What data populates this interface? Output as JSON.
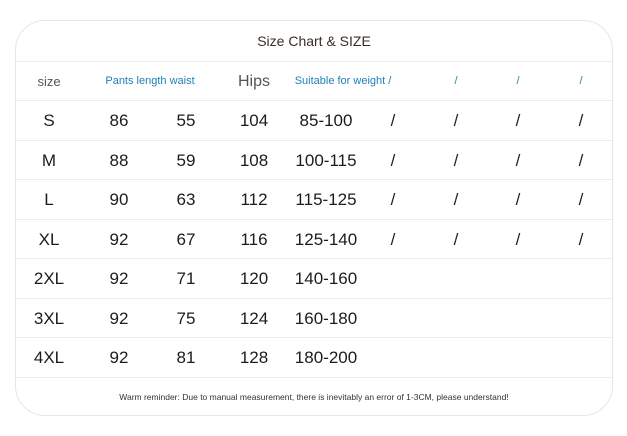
{
  "title": "Size Chart & SIZE",
  "header": {
    "size": "size",
    "pants_waist": "Pants length waist",
    "hips": "Hips",
    "weight": "Suitable for weight /",
    "extra": [
      "/",
      "/",
      "/"
    ]
  },
  "rows": [
    {
      "size": "S",
      "pants": "86",
      "waist": "55",
      "hips": "104",
      "weight": "85-100",
      "extra": [
        "/",
        "/",
        "/",
        "/"
      ]
    },
    {
      "size": "M",
      "pants": "88",
      "waist": "59",
      "hips": "108",
      "weight": "100-115",
      "extra": [
        "/",
        "/",
        "/",
        "/"
      ]
    },
    {
      "size": "L",
      "pants": "90",
      "waist": "63",
      "hips": "112",
      "weight": "115-125",
      "extra": [
        "/",
        "/",
        "/",
        "/"
      ]
    },
    {
      "size": "XL",
      "pants": "92",
      "waist": "67",
      "hips": "116",
      "weight": "125-140",
      "extra": [
        "/",
        "/",
        "/",
        "/"
      ]
    },
    {
      "size": "2XL",
      "pants": "92",
      "waist": "71",
      "hips": "120",
      "weight": "140-160",
      "extra": []
    },
    {
      "size": "3XL",
      "pants": "92",
      "waist": "75",
      "hips": "124",
      "weight": "160-180",
      "extra": []
    },
    {
      "size": "4XL",
      "pants": "92",
      "waist": "81",
      "hips": "128",
      "weight": "180-200",
      "extra": []
    }
  ],
  "footer": "Warm reminder: Due to manual measurement, there is inevitably an error of 1-3CM, please understand!"
}
